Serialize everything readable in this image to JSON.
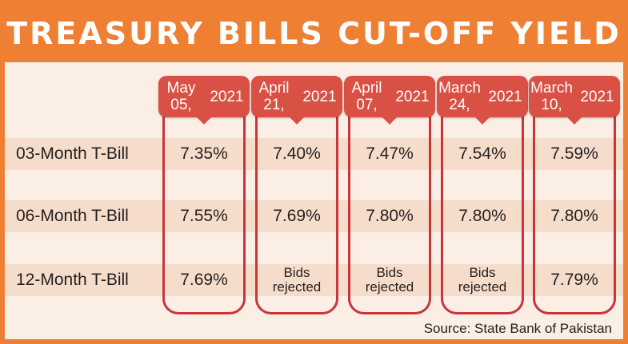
{
  "title": "TREASURY BILLS CUT-OFF YIELD",
  "source": "Source: State Bank of Pakistan",
  "colors": {
    "accent": "#ef7f33",
    "column_header": "#d95045",
    "column_border": "#c8363c",
    "row_band": "#f6dccb",
    "background": "#fbeee4"
  },
  "chart_data": {
    "type": "table",
    "title": "TREASURY BILLS CUT-OFF YIELD",
    "columns": [
      "May 05,\n2021",
      "April 21,\n2021",
      "April 07,\n2021",
      "March 24,\n2021",
      "March 10,\n2021"
    ],
    "rows": [
      {
        "label": "03-Month T-Bill",
        "values": [
          "7.35%",
          "7.40%",
          "7.47%",
          "7.54%",
          "7.59%"
        ]
      },
      {
        "label": "06-Month T-Bill",
        "values": [
          "7.55%",
          "7.69%",
          "7.80%",
          "7.80%",
          "7.80%"
        ]
      },
      {
        "label": "12-Month T-Bill",
        "values": [
          "7.69%",
          "Bids\nrejected",
          "Bids\nrejected",
          "Bids\nrejected",
          "7.79%"
        ]
      }
    ]
  }
}
